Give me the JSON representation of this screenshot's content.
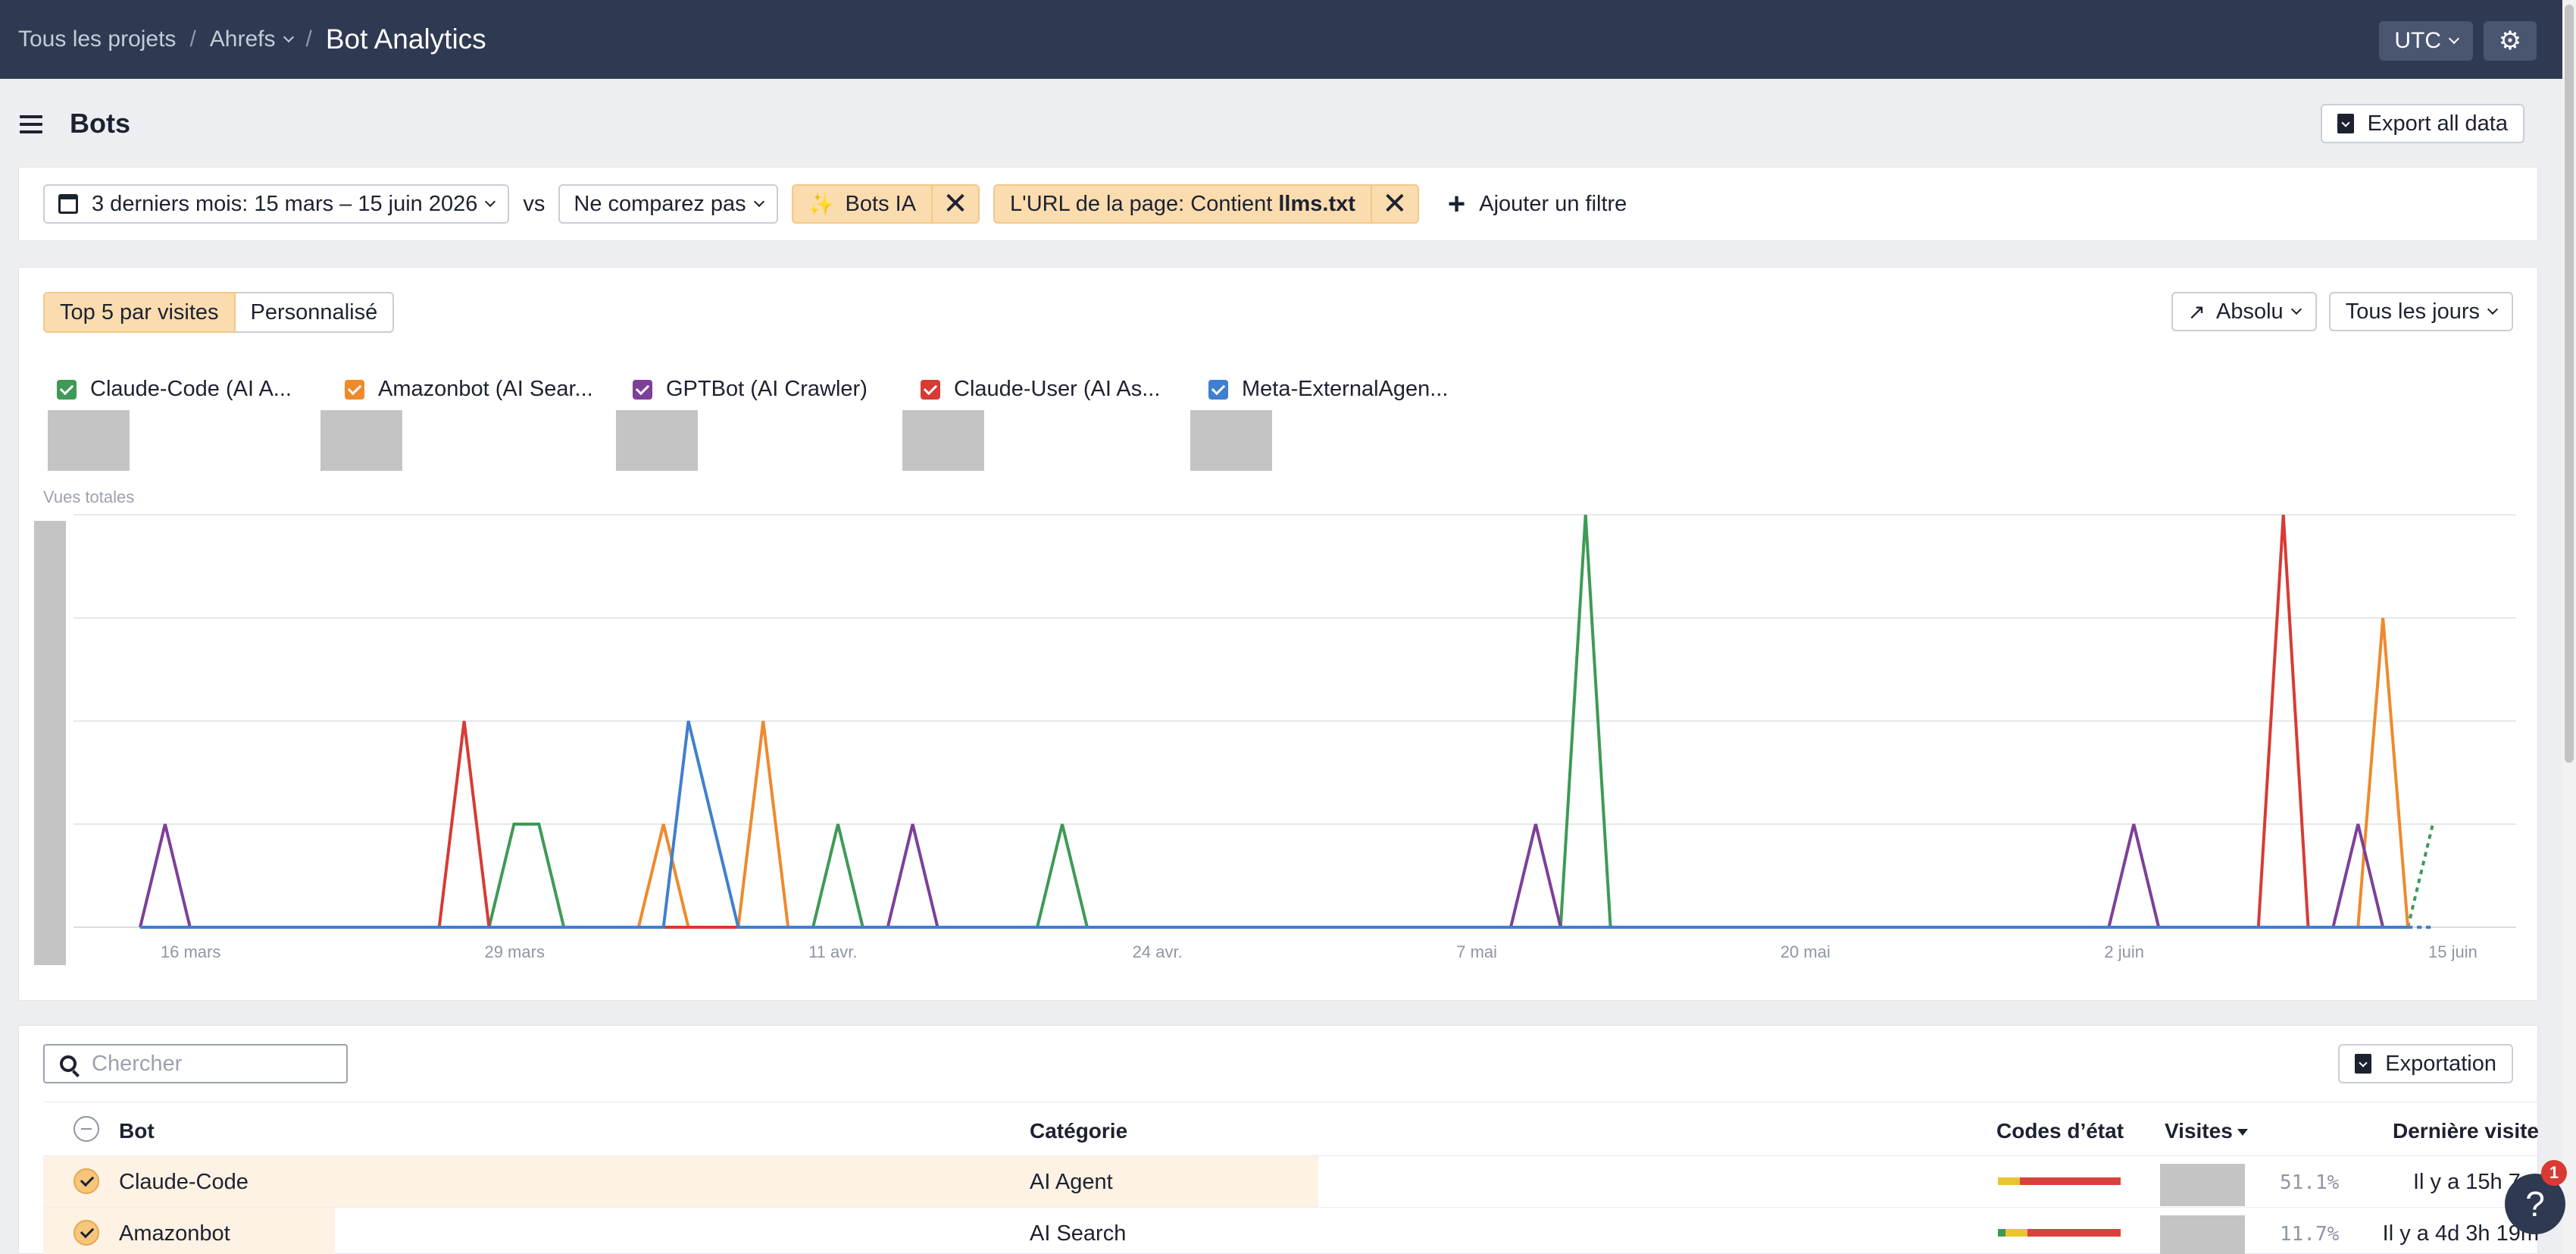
{
  "topbar": {
    "crumb_all": "Tous les projets",
    "crumb_project": "Ahrefs",
    "crumb_current": "Bot Analytics",
    "timezone": "UTC"
  },
  "page": {
    "title": "Bots",
    "export_all": "Export all data"
  },
  "filters": {
    "date_range": "3 derniers mois: 15 mars – 15 juin 2026",
    "vs": "vs",
    "compare": "Ne comparez pas",
    "chip_bots": "Bots IA",
    "chip_url_prefix": "L'URL de la page: Contient ",
    "chip_url_value": "llms.txt",
    "add_filter": "Ajouter un filtre"
  },
  "chart_controls": {
    "top5": "Top 5 par visites",
    "custom": "Personnalisé",
    "mode": "Absolu",
    "period": "Tous les jours"
  },
  "legend": [
    {
      "label": "Claude-Code (AI A...",
      "color": "#3e9a56"
    },
    {
      "label": "Amazonbot (AI Sear...",
      "color": "#ee8a2c"
    },
    {
      "label": "GPTBot (AI Crawler)",
      "color": "#7d3f98"
    },
    {
      "label": "Claude-User (AI As...",
      "color": "#d83a34"
    },
    {
      "label": "Meta-ExternalAgen...",
      "color": "#3f7fcf"
    }
  ],
  "chart_data": {
    "type": "line",
    "ylabel": "Vues totales",
    "x_ticks": [
      "16 mars",
      "29 mars",
      "11 avr.",
      "24 avr.",
      "7 mai",
      "20 mai",
      "2 juin",
      "15 juin"
    ],
    "x": [
      "15 mars",
      "16 mars",
      "17 mars",
      "18 mars",
      "19 mars",
      "20 mars",
      "21 mars",
      "22 mars",
      "23 mars",
      "24 mars",
      "25 mars",
      "26 mars",
      "27 mars",
      "28 mars",
      "29 mars",
      "30 mars",
      "31 mars",
      "1 avr.",
      "2 avr.",
      "3 avr.",
      "4 avr.",
      "5 avr.",
      "6 avr.",
      "7 avr.",
      "8 avr.",
      "9 avr.",
      "10 avr.",
      "11 avr.",
      "12 avr.",
      "13 avr.",
      "14 avr.",
      "15 avr.",
      "16 avr.",
      "17 avr.",
      "18 avr.",
      "19 avr.",
      "20 avr.",
      "21 avr.",
      "22 avr.",
      "23 avr.",
      "24 avr.",
      "25 avr.",
      "26 avr.",
      "27 avr.",
      "28 avr.",
      "29 avr.",
      "30 avr.",
      "1 mai",
      "2 mai",
      "3 mai",
      "4 mai",
      "5 mai",
      "6 mai",
      "7 mai",
      "8 mai",
      "9 mai",
      "10 mai",
      "11 mai",
      "12 mai",
      "13 mai",
      "14 mai",
      "15 mai",
      "16 mai",
      "17 mai",
      "18 mai",
      "19 mai",
      "20 mai",
      "21 mai",
      "22 mai",
      "23 mai",
      "24 mai",
      "25 mai",
      "26 mai",
      "27 mai",
      "28 mai",
      "29 mai",
      "30 mai",
      "31 mai",
      "1 juin",
      "2 juin",
      "3 juin",
      "4 juin",
      "5 juin",
      "6 juin",
      "7 juin",
      "8 juin",
      "9 juin",
      "10 juin",
      "11 juin",
      "12 juin",
      "13 juin",
      "14 juin",
      "15 juin"
    ],
    "ylim": [
      0,
      4
    ],
    "grid": true,
    "partial_last_point": true,
    "series": [
      {
        "name": "Claude-Code",
        "color": "#3e9a56",
        "values": [
          0,
          0,
          0,
          0,
          0,
          0,
          0,
          0,
          0,
          0,
          0,
          0,
          0,
          0,
          0,
          1,
          1,
          0,
          0,
          0,
          0,
          0,
          0,
          0,
          0,
          0,
          0,
          0,
          1,
          0,
          0,
          0,
          0,
          0,
          0,
          0,
          0,
          1,
          0,
          0,
          0,
          0,
          0,
          0,
          0,
          0,
          0,
          0,
          0,
          0,
          0,
          0,
          0,
          0,
          0,
          0,
          0,
          0,
          4,
          0,
          0,
          0,
          0,
          0,
          0,
          0,
          0,
          0,
          0,
          0,
          0,
          0,
          0,
          0,
          0,
          0,
          0,
          0,
          0,
          0,
          0,
          0,
          0,
          0,
          0,
          0,
          0,
          0,
          0,
          0,
          0,
          0,
          1
        ]
      },
      {
        "name": "Amazonbot",
        "color": "#ee8a2c",
        "values": [
          0,
          0,
          0,
          0,
          0,
          0,
          0,
          0,
          0,
          0,
          0,
          0,
          0,
          0,
          0,
          0,
          0,
          0,
          0,
          0,
          0,
          1,
          0,
          0,
          0,
          2,
          0,
          0,
          0,
          0,
          0,
          0,
          0,
          0,
          0,
          0,
          0,
          0,
          0,
          0,
          0,
          0,
          0,
          0,
          0,
          0,
          0,
          0,
          0,
          0,
          0,
          0,
          0,
          0,
          0,
          0,
          0,
          0,
          0,
          0,
          0,
          0,
          0,
          0,
          0,
          0,
          0,
          0,
          0,
          0,
          0,
          0,
          0,
          0,
          0,
          0,
          0,
          0,
          0,
          0,
          0,
          0,
          0,
          0,
          0,
          0,
          0,
          0,
          0,
          0,
          3,
          0,
          0
        ]
      },
      {
        "name": "GPTBot",
        "color": "#7d3f98",
        "values": [
          0,
          1,
          0,
          0,
          0,
          0,
          0,
          0,
          0,
          0,
          0,
          0,
          0,
          0,
          0,
          0,
          0,
          0,
          0,
          0,
          0,
          0,
          0,
          0,
          0,
          0,
          0,
          0,
          0,
          0,
          0,
          1,
          0,
          0,
          0,
          0,
          0,
          0,
          0,
          0,
          0,
          0,
          0,
          0,
          0,
          0,
          0,
          0,
          0,
          0,
          0,
          0,
          0,
          0,
          0,
          0,
          1,
          0,
          0,
          0,
          0,
          0,
          0,
          0,
          0,
          0,
          0,
          0,
          0,
          0,
          0,
          0,
          0,
          0,
          0,
          0,
          0,
          0,
          0,
          0,
          1,
          0,
          0,
          0,
          0,
          0,
          0,
          0,
          0,
          1,
          0,
          0,
          0
        ]
      },
      {
        "name": "Claude-User",
        "color": "#d83a34",
        "values": [
          0,
          0,
          0,
          0,
          0,
          0,
          0,
          0,
          0,
          0,
          0,
          0,
          0,
          2,
          0,
          0,
          0,
          0,
          0,
          0,
          0,
          0,
          0,
          0,
          0,
          0,
          0,
          0,
          0,
          0,
          0,
          0,
          0,
          0,
          0,
          0,
          0,
          0,
          0,
          0,
          0,
          0,
          0,
          0,
          0,
          0,
          0,
          0,
          0,
          0,
          0,
          0,
          0,
          0,
          0,
          0,
          0,
          0,
          0,
          0,
          0,
          0,
          0,
          0,
          0,
          0,
          0,
          0,
          0,
          0,
          0,
          0,
          0,
          0,
          0,
          0,
          0,
          0,
          0,
          0,
          0,
          0,
          0,
          0,
          0,
          0,
          4,
          0,
          0,
          0,
          0,
          0,
          0
        ]
      },
      {
        "name": "Meta-ExternalAgent",
        "color": "#3f7fcf",
        "values": [
          0,
          0,
          0,
          0,
          0,
          0,
          0,
          0,
          0,
          0,
          0,
          0,
          0,
          0,
          0,
          0,
          0,
          0,
          0,
          0,
          0,
          0,
          2,
          1,
          0,
          0,
          0,
          0,
          0,
          0,
          0,
          0,
          0,
          0,
          0,
          0,
          0,
          0,
          0,
          0,
          0,
          0,
          0,
          0,
          0,
          0,
          0,
          0,
          0,
          0,
          0,
          0,
          0,
          0,
          0,
          0,
          0,
          0,
          0,
          0,
          0,
          0,
          0,
          0,
          0,
          0,
          0,
          0,
          0,
          0,
          0,
          0,
          0,
          0,
          0,
          0,
          0,
          0,
          0,
          0,
          0,
          0,
          0,
          0,
          0,
          0,
          0,
          0,
          0,
          0,
          0,
          0,
          0
        ]
      }
    ]
  },
  "table": {
    "search_placeholder": "Chercher",
    "export": "Exportation",
    "headers": {
      "bot": "Bot",
      "category": "Catégorie",
      "status": "Codes d’état",
      "visits": "Visites",
      "last_visit": "Dernière visite"
    },
    "rows": [
      {
        "bot": "Claude-Code",
        "category": "AI Agent",
        "visit_share": 0.511,
        "pct": "51.1%",
        "last": "Il y a 15h 7m",
        "status": [
          0.18,
          0.82
        ],
        "status_colors": [
          "#e9c42f",
          "#d8423b"
        ]
      },
      {
        "bot": "Amazonbot",
        "category": "AI Search",
        "visit_share": 0.117,
        "pct": "11.7%",
        "last": "Il y a 4d 3h 19m",
        "status": [
          0.06,
          0.18,
          0.76
        ],
        "status_colors": [
          "#3e9a56",
          "#e9c42f",
          "#d8423b"
        ]
      }
    ]
  },
  "help": {
    "glyph": "?",
    "badge": "1"
  }
}
